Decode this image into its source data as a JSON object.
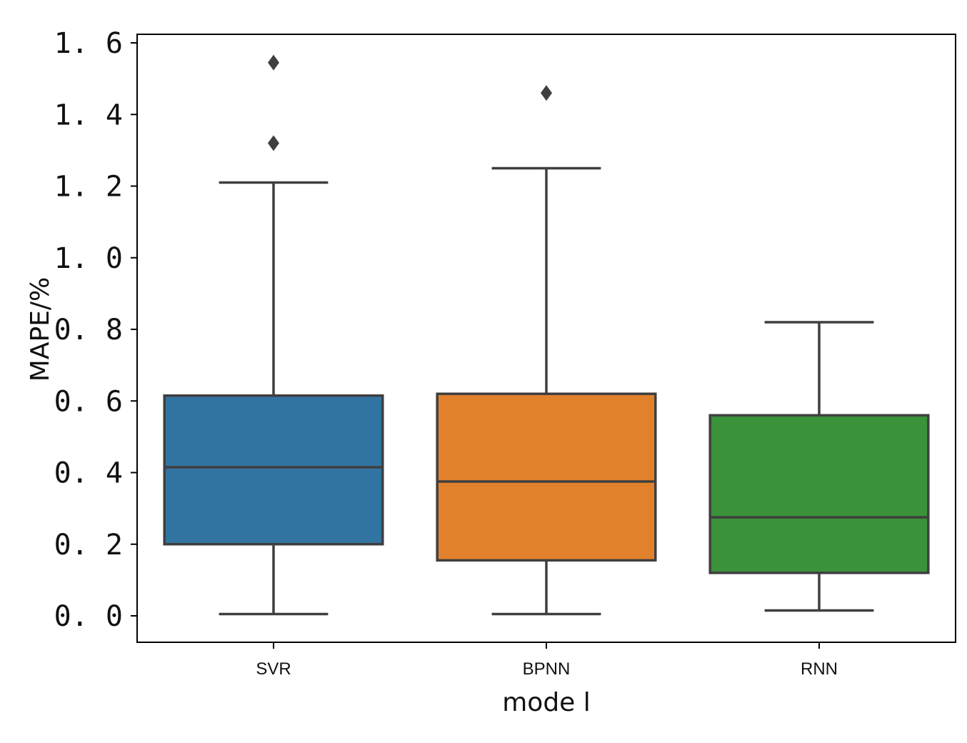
{
  "chart_data": {
    "type": "box",
    "xlabel": "mode l",
    "ylabel": "MAPE/%",
    "ylim": [
      -0.075,
      1.625
    ],
    "yticks": [
      0.0,
      0.2,
      0.4,
      0.6,
      0.8,
      1.0,
      1.2,
      1.4,
      1.6
    ],
    "ytick_labels": [
      "0. 0",
      "0. 2",
      "0. 4",
      "0. 6",
      "0. 8",
      "1. 0",
      "1. 2",
      "1. 4",
      "1. 6"
    ],
    "categories": [
      "SVR",
      "BPNN",
      "RNN"
    ],
    "grid": false,
    "legend": "none",
    "colors": [
      "#3274a1",
      "#e1812c",
      "#3a923a"
    ],
    "edge_color": "#3f3f3f",
    "boxes": [
      {
        "category": "SVR",
        "whisker_low": 0.005,
        "q1": 0.2,
        "median": 0.415,
        "q3": 0.615,
        "whisker_high": 1.21,
        "outliers": [
          1.32,
          1.545
        ]
      },
      {
        "category": "BPNN",
        "whisker_low": 0.005,
        "q1": 0.155,
        "median": 0.375,
        "q3": 0.62,
        "whisker_high": 1.25,
        "outliers": [
          1.46
        ]
      },
      {
        "category": "RNN",
        "whisker_low": 0.015,
        "q1": 0.12,
        "median": 0.275,
        "q3": 0.56,
        "whisker_high": 0.82,
        "outliers": []
      }
    ]
  }
}
